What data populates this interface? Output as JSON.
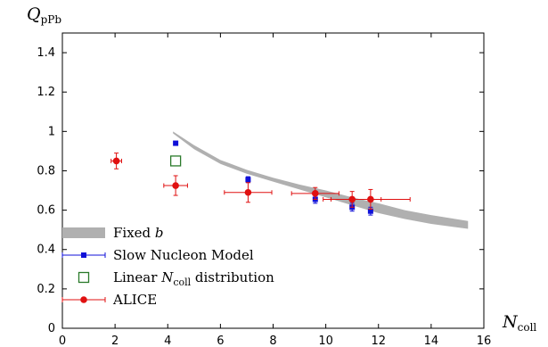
{
  "chart_data": {
    "type": "scatter",
    "title": "",
    "ylabel": {
      "main": "Q",
      "sub": "pPb"
    },
    "xlabel": {
      "main": "N",
      "sub": "coll"
    },
    "xlim": [
      0,
      16
    ],
    "ylim": [
      0,
      1.5
    ],
    "xticks": [
      0,
      2,
      4,
      6,
      8,
      10,
      12,
      14,
      16
    ],
    "yticks": [
      0,
      0.2,
      0.4,
      0.6,
      0.8,
      1,
      1.2,
      1.4
    ],
    "ytick_labels": [
      "0",
      "0.2",
      "0.4",
      "0.6",
      "0.8",
      "1",
      "1.2",
      "1.4"
    ],
    "grid": false,
    "legend_position": "bottom-left",
    "colors": {
      "band": "#b0b0b0",
      "slow_nucleon": "#1010d8",
      "linear": "#2a7a2a",
      "alice": "#e01010"
    },
    "series": [
      {
        "key": "band",
        "label": "Fixed ",
        "label_italic": "b",
        "kind": "band",
        "x": [
          4.2,
          5.0,
          6.0,
          7.0,
          8.0,
          9.0,
          10.0,
          11.0,
          12.0,
          13.0,
          14.0,
          15.4
        ],
        "upper": [
          1.0,
          0.93,
          0.855,
          0.805,
          0.765,
          0.73,
          0.7,
          0.665,
          0.635,
          0.6,
          0.575,
          0.545
        ],
        "lower": [
          0.99,
          0.91,
          0.835,
          0.785,
          0.745,
          0.705,
          0.665,
          0.625,
          0.585,
          0.555,
          0.53,
          0.505
        ]
      },
      {
        "key": "slow_nucleon",
        "label": "Slow Nucleon Model",
        "kind": "points",
        "points": [
          {
            "x": 4.3,
            "y": 0.94,
            "yerr": 0.0
          },
          {
            "x": 7.05,
            "y": 0.755,
            "yerr": 0.015
          },
          {
            "x": 9.6,
            "y": 0.655,
            "yerr": 0.02
          },
          {
            "x": 11.0,
            "y": 0.615,
            "yerr": 0.02
          },
          {
            "x": 11.7,
            "y": 0.595,
            "yerr": 0.02
          }
        ]
      },
      {
        "key": "linear",
        "label": "Linear ",
        "label_italic": "N",
        "label_sub": "coll",
        "label_tail": " distribution",
        "kind": "points",
        "points": [
          {
            "x": 4.3,
            "y": 0.85
          }
        ]
      },
      {
        "key": "alice",
        "label": "ALICE",
        "kind": "points",
        "points": [
          {
            "x": 2.05,
            "y": 0.85,
            "xerr": 0.2,
            "yerr": 0.04
          },
          {
            "x": 4.3,
            "y": 0.725,
            "xerr": 0.45,
            "yerr": 0.05
          },
          {
            "x": 7.05,
            "y": 0.69,
            "xerr": 0.9,
            "yerr": 0.05
          },
          {
            "x": 9.6,
            "y": 0.685,
            "xerr": 0.9,
            "yerr": 0.03
          },
          {
            "x": 11.0,
            "y": 0.655,
            "xerr": 1.1,
            "yerr": 0.04
          },
          {
            "x": 11.7,
            "y": 0.655,
            "xerr": 1.5,
            "yerr": 0.05
          }
        ]
      }
    ]
  }
}
